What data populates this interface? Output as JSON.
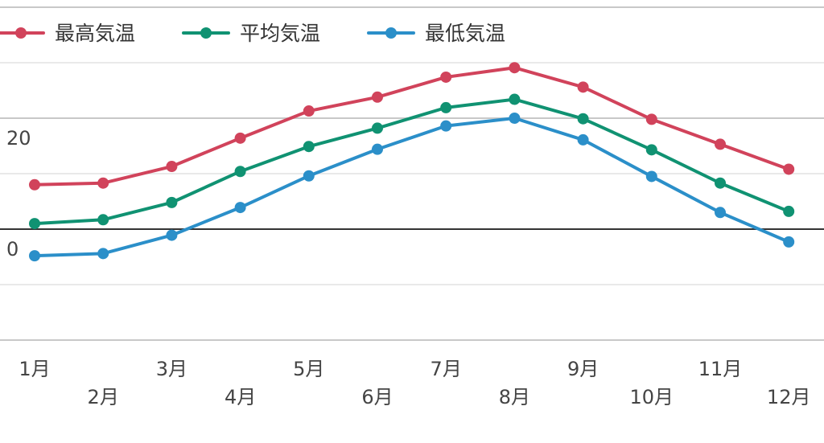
{
  "chart_data": {
    "type": "line",
    "categories": [
      "1月",
      "2月",
      "3月",
      "4月",
      "5月",
      "6月",
      "7月",
      "8月",
      "9月",
      "10月",
      "11月",
      "12月"
    ],
    "series": [
      {
        "name": "最高気温",
        "color": "#d1435b",
        "values": [
          8.0,
          8.3,
          11.3,
          16.4,
          21.3,
          23.8,
          27.4,
          29.1,
          25.6,
          19.8,
          15.3,
          10.8
        ]
      },
      {
        "name": "平均気温",
        "color": "#109272",
        "values": [
          1.0,
          1.7,
          4.8,
          10.4,
          14.9,
          18.2,
          21.9,
          23.4,
          19.9,
          14.3,
          8.3,
          3.2
        ]
      },
      {
        "name": "最低気温",
        "color": "#2b8fc9",
        "values": [
          -4.8,
          -4.4,
          -1.1,
          3.9,
          9.6,
          14.4,
          18.6,
          20.0,
          16.1,
          9.5,
          3.0,
          -2.3
        ]
      }
    ],
    "y_ticks": [
      {
        "value": 20,
        "label": "20"
      },
      {
        "value": 0,
        "label": "0"
      }
    ],
    "ylim": [
      -20,
      40
    ],
    "legend": "top-left",
    "grid": true
  }
}
